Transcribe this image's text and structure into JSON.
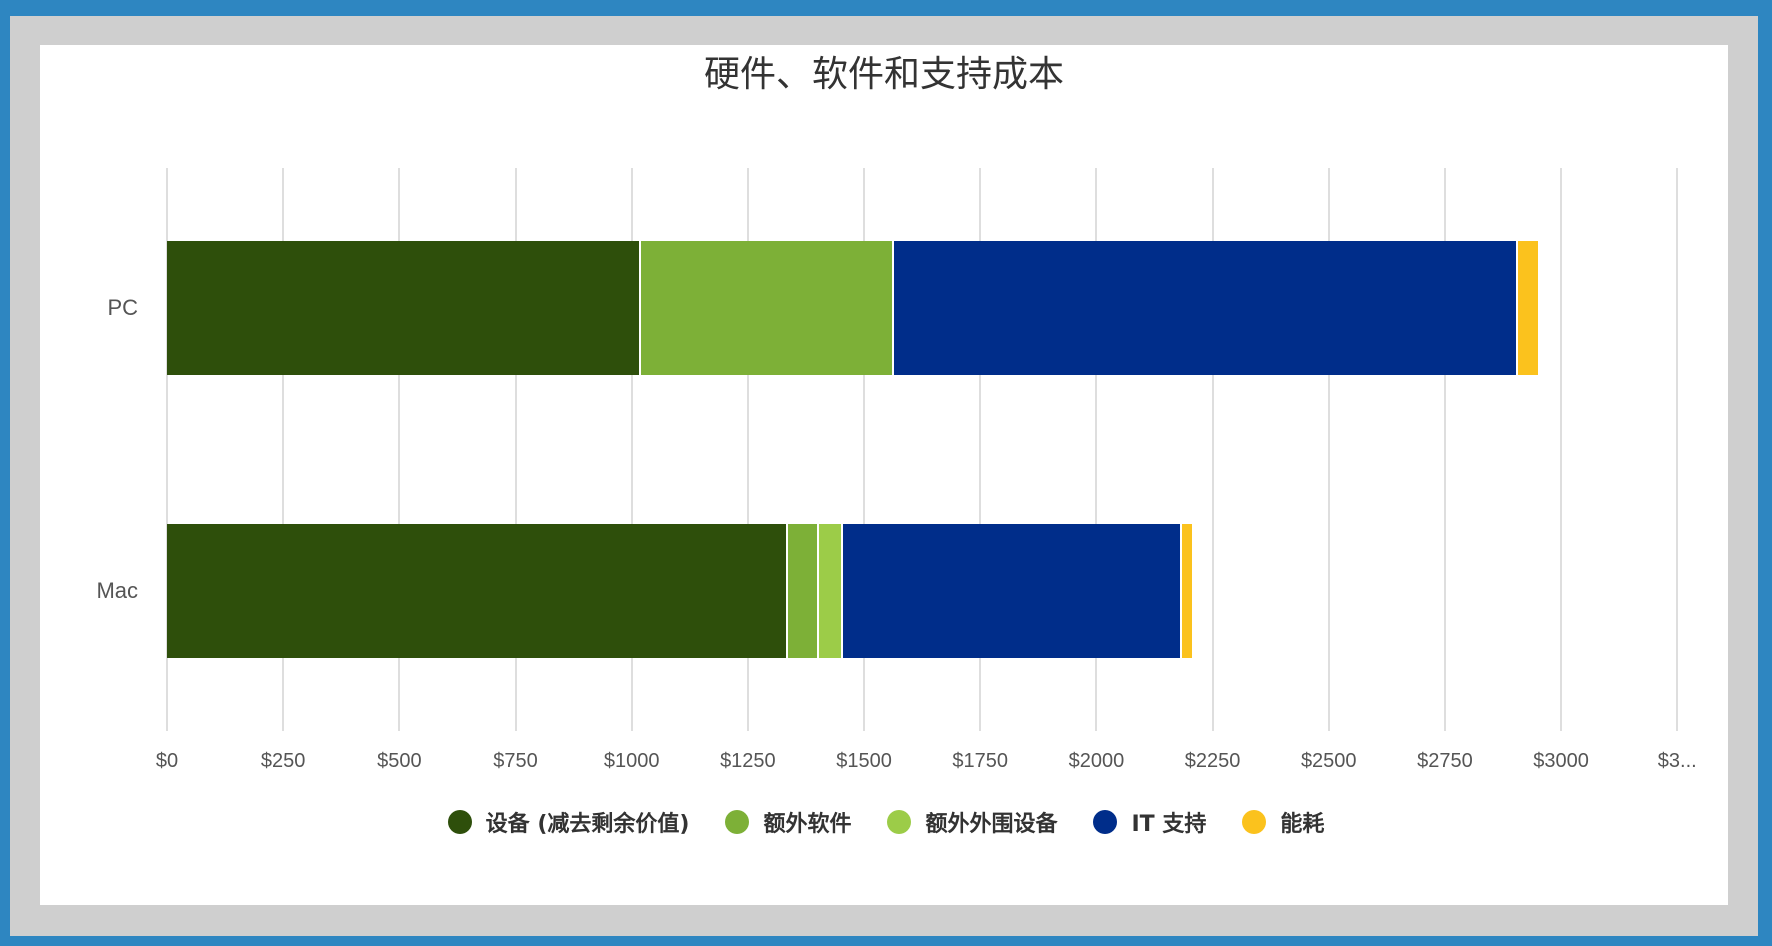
{
  "chart_data": {
    "type": "bar",
    "orientation": "horizontal",
    "stacked": true,
    "title": "硬件、软件和支持成本",
    "xlabel": "",
    "ylabel": "",
    "categories": [
      "PC",
      "Mac"
    ],
    "series": [
      {
        "name": "设备 (减去剩余价值)",
        "color": "#2e4f0b",
        "values": [
          1020,
          1336
        ]
      },
      {
        "name": "额外软件",
        "color": "#7db037",
        "values": [
          544,
          67
        ]
      },
      {
        "name": "额外外围设备",
        "color": "#9ccc48",
        "values": [
          0,
          52
        ]
      },
      {
        "name": "IT 支持",
        "color": "#002d8a",
        "values": [
          1343,
          729
        ]
      },
      {
        "name": "能耗",
        "color": "#fbc21d",
        "values": [
          43,
          22
        ]
      }
    ],
    "xlim": [
      0,
      3250
    ],
    "xticks": [
      "$0",
      "$250",
      "$500",
      "$750",
      "$1000",
      "$1250",
      "$1500",
      "$1750",
      "$2000",
      "$2250",
      "$2500",
      "$2750",
      "$3000",
      "$3..."
    ],
    "grid": true,
    "legend_position": "bottom"
  }
}
